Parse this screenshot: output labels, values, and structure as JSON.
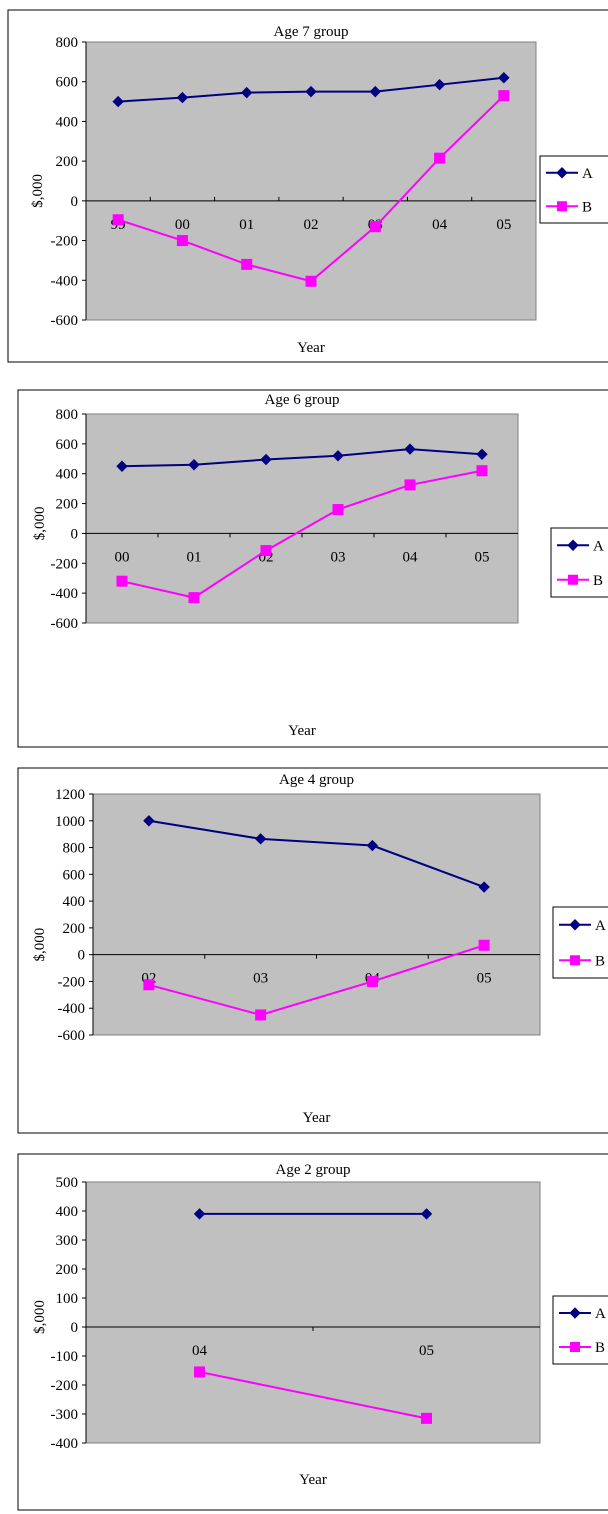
{
  "chart_data": [
    {
      "type": "line",
      "title": "Age 7 group",
      "xlabel": "Year",
      "ylabel": "$,000",
      "categories": [
        "99",
        "00",
        "01",
        "02",
        "03",
        "04",
        "05"
      ],
      "ylim": [
        -600,
        800
      ],
      "yticks": [
        -600,
        -400,
        -200,
        0,
        200,
        400,
        600,
        800
      ],
      "grid": false,
      "legend_position": "right",
      "series": [
        {
          "name": "A",
          "color": "#000080",
          "marker": "diamond",
          "values": [
            500,
            520,
            545,
            550,
            550,
            585,
            620
          ]
        },
        {
          "name": "B",
          "color": "#FF00FF",
          "marker": "square",
          "values": [
            -95,
            -200,
            -320,
            -405,
            -130,
            215,
            530
          ]
        }
      ]
    },
    {
      "type": "line",
      "title": "Age 6 group",
      "xlabel": "Year",
      "ylabel": "$,000",
      "categories": [
        "00",
        "01",
        "02",
        "03",
        "04",
        "05"
      ],
      "ylim": [
        -600,
        800
      ],
      "yticks": [
        -600,
        -400,
        -200,
        0,
        200,
        400,
        600,
        800
      ],
      "grid": false,
      "legend_position": "right",
      "series": [
        {
          "name": "A",
          "color": "#000080",
          "marker": "diamond",
          "values": [
            450,
            460,
            495,
            520,
            565,
            530
          ]
        },
        {
          "name": "B",
          "color": "#FF00FF",
          "marker": "square",
          "values": [
            -320,
            -430,
            -115,
            160,
            325,
            420
          ]
        }
      ]
    },
    {
      "type": "line",
      "title": "Age 4 group",
      "xlabel": "Year",
      "ylabel": "$,000",
      "categories": [
        "02",
        "03",
        "04",
        "05"
      ],
      "ylim": [
        -600,
        1200
      ],
      "yticks": [
        -600,
        -400,
        -200,
        0,
        200,
        400,
        600,
        800,
        1000,
        1200
      ],
      "grid": false,
      "legend_position": "right",
      "series": [
        {
          "name": "A",
          "color": "#000080",
          "marker": "diamond",
          "values": [
            1000,
            865,
            815,
            505
          ]
        },
        {
          "name": "B",
          "color": "#FF00FF",
          "marker": "square",
          "values": [
            -225,
            -450,
            -200,
            70
          ]
        }
      ]
    },
    {
      "type": "line",
      "title": "Age 2 group",
      "xlabel": "Year",
      "ylabel": "$,000",
      "categories": [
        "04",
        "05"
      ],
      "ylim": [
        -400,
        500
      ],
      "yticks": [
        -400,
        -300,
        -200,
        -100,
        0,
        100,
        200,
        300,
        400,
        500
      ],
      "grid": false,
      "legend_position": "right",
      "series": [
        {
          "name": "A",
          "color": "#000080",
          "marker": "diamond",
          "values": [
            390,
            390
          ]
        },
        {
          "name": "B",
          "color": "#FF00FF",
          "marker": "square",
          "values": [
            -155,
            -315
          ]
        }
      ]
    }
  ]
}
